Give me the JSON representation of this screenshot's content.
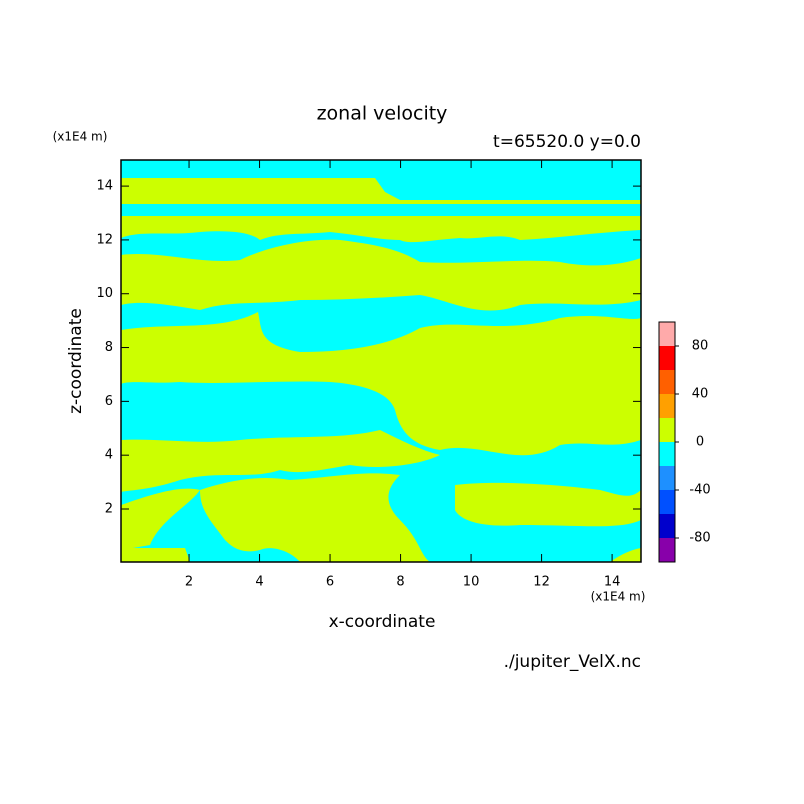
{
  "chart_data": {
    "type": "contour",
    "title": "zonal velocity",
    "subtitle": "t=65520.0 y=0.0",
    "x_label": "x-coordinate",
    "y_label": "z-coordinate",
    "x_unit": "(x1E4 m)",
    "y_unit": "(x1E4 m)",
    "source": "./jupiter_VelX.nc",
    "xlim": [
      0.07,
      14.82
    ],
    "ylim": [
      0.03,
      14.97
    ],
    "xticks": [
      2,
      4,
      6,
      8,
      10,
      12,
      14
    ],
    "yticks": [
      2,
      4,
      6,
      8,
      10,
      12,
      14
    ],
    "levels": [
      -100,
      -80,
      -60,
      -40,
      -20,
      0,
      20,
      40,
      60,
      80,
      100
    ],
    "level_ticks": [
      -80,
      -40,
      0,
      40,
      80
    ],
    "colors": [
      "#8800aa",
      "#0000cc",
      "#0050ff",
      "#1e90ff",
      "#00ffff",
      "#ccff00",
      "#ffa000",
      "#ff6000",
      "#ff0000",
      "#ffaaaa"
    ]
  }
}
